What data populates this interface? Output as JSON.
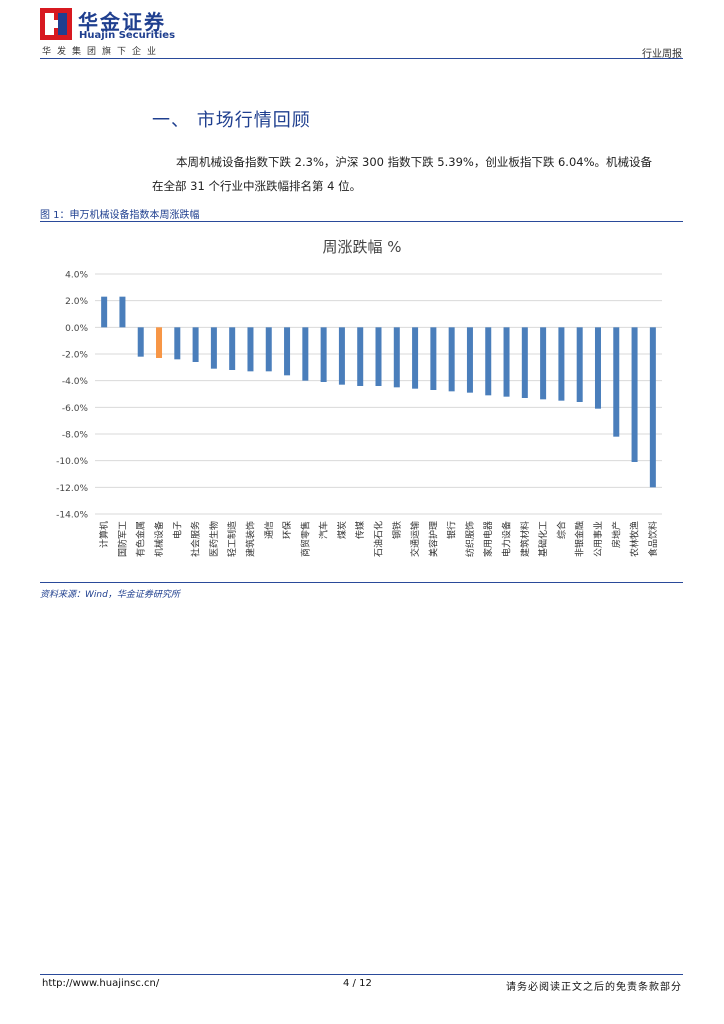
{
  "header": {
    "brand_cn": "华金证券",
    "brand_en": "Huajin Securities",
    "slogan": "华发集团旗下企业",
    "report_type": "行业周报"
  },
  "section": {
    "heading": "一、 市场行情回顾",
    "paragraph_line1": "本周机械设备指数下跌 2.3%，沪深 300  指数下跌 5.39%，创业板指下跌 6.04%。机械设备",
    "paragraph_line2": "在全部 31 个行业中涨跌幅排名第 4 位。"
  },
  "figure": {
    "caption": "图 1：申万机械设备指数本周涨跌幅",
    "source": "资料来源：Wind，华金证券研究所"
  },
  "chart_data": {
    "type": "bar",
    "title": "周涨跌幅 %",
    "xlabel": "",
    "ylabel": "",
    "ylim": [
      -14.0,
      4.0
    ],
    "yticks": [
      "4.0%",
      "2.0%",
      "0.0%",
      "-2.0%",
      "-4.0%",
      "-6.0%",
      "-8.0%",
      "-10.0%",
      "-12.0%",
      "-14.0%"
    ],
    "grid": true,
    "highlight_category": "机械设备",
    "colors": {
      "bar": "#4a7ebb",
      "highlight": "#f79646",
      "grid": "#d9d9d9"
    },
    "categories": [
      "计算机",
      "国防军工",
      "有色金属",
      "机械设备",
      "电子",
      "社会服务",
      "医药生物",
      "轻工制造",
      "建筑装饰",
      "通信",
      "环保",
      "商贸零售",
      "汽车",
      "煤炭",
      "传媒",
      "石油石化",
      "钢铁",
      "交通运输",
      "美容护理",
      "银行",
      "纺织服饰",
      "家用电器",
      "电力设备",
      "建筑材料",
      "基础化工",
      "综合",
      "非银金融",
      "公用事业",
      "房地产",
      "农林牧渔",
      "食品饮料"
    ],
    "values": [
      2.3,
      2.3,
      -2.2,
      -2.3,
      -2.4,
      -2.6,
      -3.1,
      -3.2,
      -3.3,
      -3.3,
      -3.6,
      -4.0,
      -4.1,
      -4.3,
      -4.4,
      -4.4,
      -4.5,
      -4.6,
      -4.7,
      -4.8,
      -4.9,
      -5.1,
      -5.2,
      -5.3,
      -5.4,
      -5.5,
      -5.6,
      -6.1,
      -8.2,
      -10.1,
      -12.0
    ]
  },
  "footer": {
    "url": "http://www.huajinsc.cn/",
    "page": "4 / 12",
    "disclaimer": "请务必阅读正文之后的免责条款部分"
  }
}
